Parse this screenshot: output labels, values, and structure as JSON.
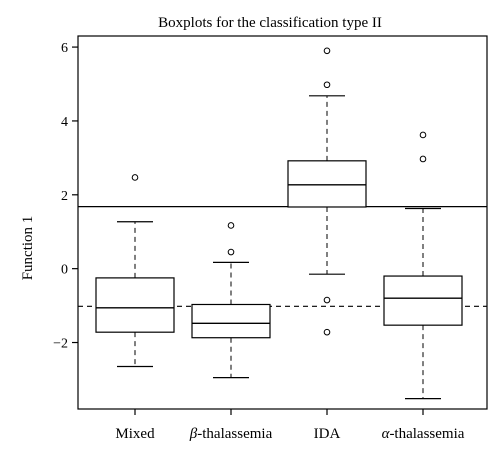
{
  "chart_data": {
    "type": "box",
    "title": "Boxplots for the classification type II",
    "ylabel": "Function 1",
    "xlabel": "",
    "ylim": [
      -3.8,
      6.3
    ],
    "yticks": [
      -2,
      0,
      2,
      4,
      6
    ],
    "categories": [
      {
        "label": "Mixed",
        "prefix": "",
        "suffix": "Mixed"
      },
      {
        "label": "β-thalassemia",
        "prefix": "β",
        "suffix": "-thalassemia"
      },
      {
        "label": "IDA",
        "prefix": "",
        "suffix": "IDA"
      },
      {
        "label": "α-thalassemia",
        "prefix": "α",
        "suffix": "-thalassemia"
      }
    ],
    "boxes": [
      {
        "whisker_low": -2.65,
        "q1": -1.72,
        "median": -1.06,
        "q3": -0.25,
        "whisker_high": 1.27,
        "outliers": [
          2.47
        ]
      },
      {
        "whisker_low": -2.95,
        "q1": -1.87,
        "median": -1.48,
        "q3": -0.97,
        "whisker_high": 0.17,
        "outliers": [
          0.45,
          1.17
        ]
      },
      {
        "whisker_low": -0.15,
        "q1": 1.67,
        "median": 2.27,
        "q3": 2.92,
        "whisker_high": 4.68,
        "outliers": [
          -0.85,
          -1.72,
          4.98,
          5.9
        ]
      },
      {
        "whisker_low": -3.52,
        "q1": -1.53,
        "median": -0.8,
        "q3": -0.2,
        "whisker_high": 1.63,
        "outliers": [
          2.97,
          3.62
        ]
      }
    ],
    "reference_lines": [
      {
        "y": 1.68,
        "style": "solid"
      },
      {
        "y": -1.02,
        "style": "dashed"
      }
    ],
    "grid": false,
    "legend": "none"
  }
}
